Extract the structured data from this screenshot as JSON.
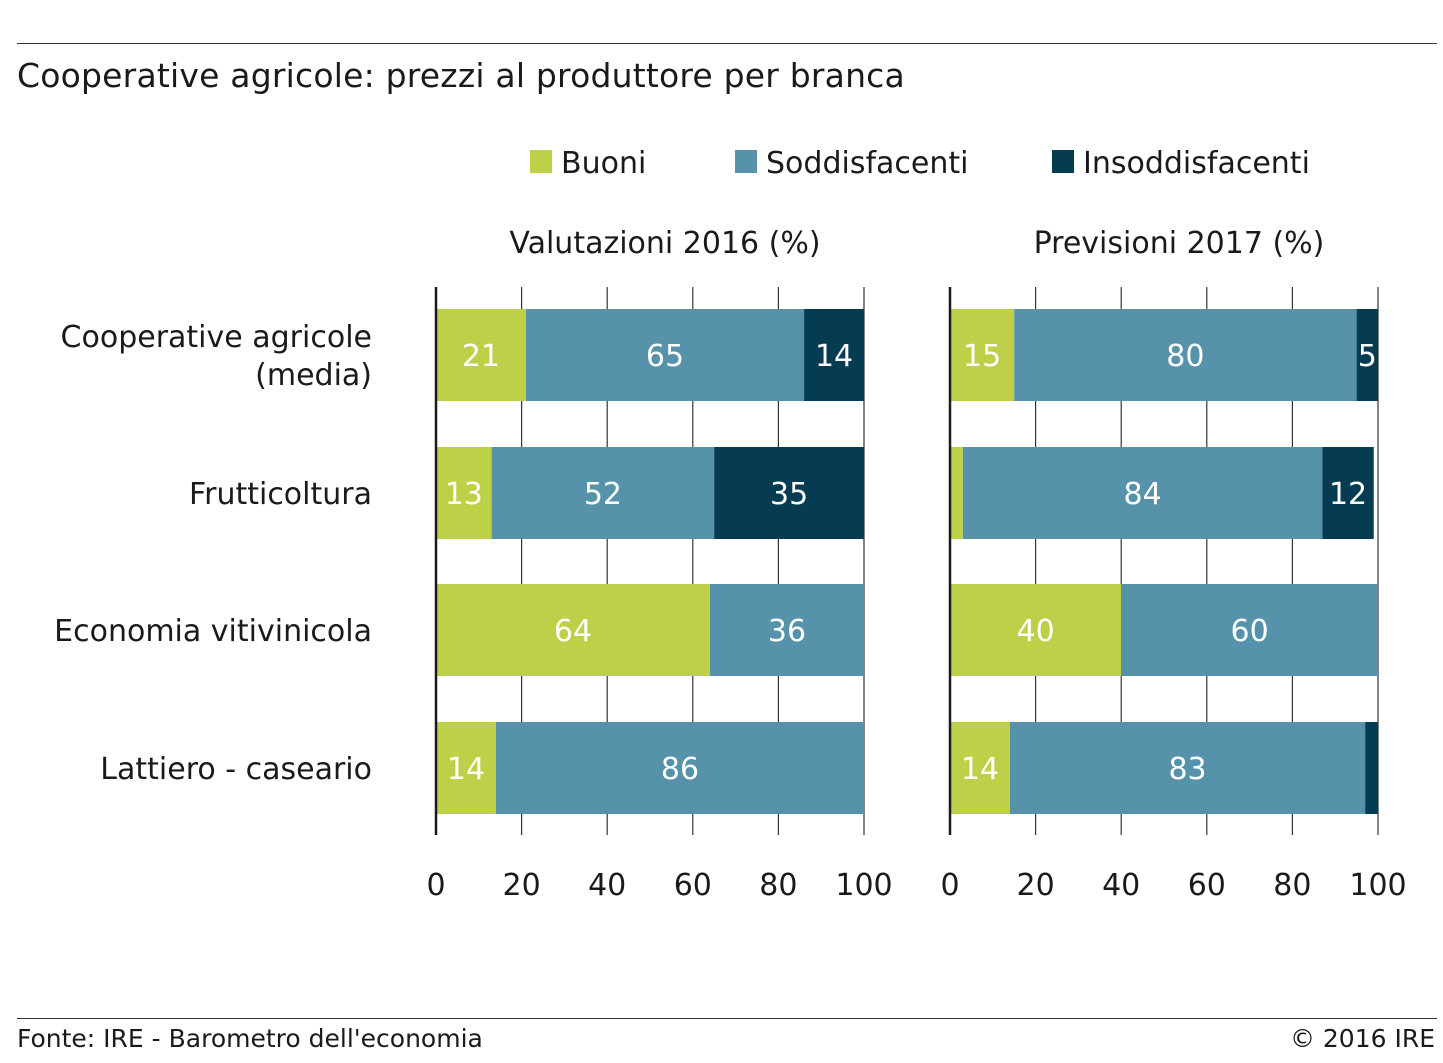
{
  "title": "Cooperative agricole: prezzi al produttore per branca",
  "footer": {
    "source": "Fonte: IRE - Barometro dell'economia",
    "copyright": "© 2016 IRE"
  },
  "colors": {
    "Buoni": "#bdd047",
    "Soddisfacenti": "#5693ab",
    "Insoddisfacenti": "#053c52",
    "bar_label": "#ffffff",
    "grid": "#333333"
  },
  "chart_data": [
    {
      "type": "bar",
      "orientation": "horizontal",
      "stacked": true,
      "title": "Valutazioni 2016 (%)",
      "categories": [
        "Cooperative agricole\n(media)",
        "Frutticoltura",
        "Economia vitivinicola",
        "Lattiero - caseario"
      ],
      "series": [
        {
          "name": "Buoni",
          "values": [
            21,
            13,
            64,
            14
          ]
        },
        {
          "name": "Soddisfacenti",
          "values": [
            65,
            52,
            36,
            86
          ]
        },
        {
          "name": "Insoddisfacenti",
          "values": [
            14,
            35,
            0,
            0
          ]
        }
      ],
      "xlim": [
        0,
        100
      ],
      "xticks": [
        0,
        20,
        40,
        60,
        80,
        100
      ],
      "grid": true,
      "legend": "top"
    },
    {
      "type": "bar",
      "orientation": "horizontal",
      "stacked": true,
      "title": "Previsioni 2017 (%)",
      "categories": [
        "Cooperative agricole\n(media)",
        "Frutticoltura",
        "Economia vitivinicola",
        "Lattiero - caseario"
      ],
      "series": [
        {
          "name": "Buoni",
          "values": [
            15,
            3,
            40,
            14
          ]
        },
        {
          "name": "Soddisfacenti",
          "values": [
            80,
            84,
            60,
            83
          ]
        },
        {
          "name": "Insoddisfacenti",
          "values": [
            5,
            12,
            0,
            3
          ]
        }
      ],
      "xlim": [
        0,
        100
      ],
      "xticks": [
        0,
        20,
        40,
        60,
        80,
        100
      ],
      "grid": true,
      "legend": "top"
    }
  ]
}
